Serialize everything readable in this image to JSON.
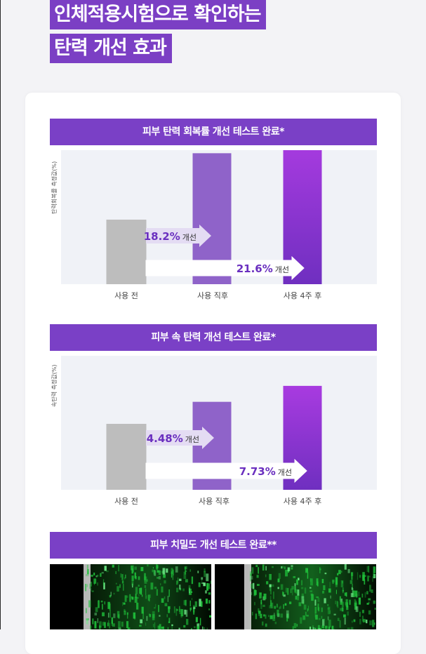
{
  "headline": {
    "line1": "인체적용시험으로 확인하는",
    "line2": "탄력 개선 효과"
  },
  "colors": {
    "accent": "#7a40c6",
    "control_bar": "#bdbdbd",
    "bar_mid": "#8f63c9",
    "bar_top": "#a83be0",
    "bar_bottom": "#6f2fc0"
  },
  "chart_data": [
    {
      "type": "bar",
      "title": "피부 탄력 회복률 개선 테스트 완료*",
      "ylabel": "탄력회복률 측정값(%)",
      "categories": [
        "사용 전",
        "사용 직후",
        "사용 4주 후"
      ],
      "values": [
        100,
        118.2,
        121.6
      ],
      "annotations": [
        {
          "value": "18.2%",
          "suffix": "개선",
          "from": "사용 전",
          "to": "사용 직후"
        },
        {
          "value": "21.6%",
          "suffix": "개선",
          "from": "사용 전",
          "to": "사용 4주 후"
        }
      ]
    },
    {
      "type": "bar",
      "title": "피부 속 탄력 개선 테스트 완료*",
      "ylabel": "속탄력 측정값(%)",
      "categories": [
        "사용 전",
        "사용 직후",
        "사용 4주 후"
      ],
      "values": [
        100,
        104.48,
        107.73
      ],
      "annotations": [
        {
          "value": "4.48%",
          "suffix": "개선",
          "from": "사용 전",
          "to": "사용 직후"
        },
        {
          "value": "7.73%",
          "suffix": "개선",
          "from": "사용 전",
          "to": "사용 4주 후"
        }
      ]
    }
  ],
  "density_section": {
    "title": "피부 치밀도 개선 테스트 완료**"
  }
}
